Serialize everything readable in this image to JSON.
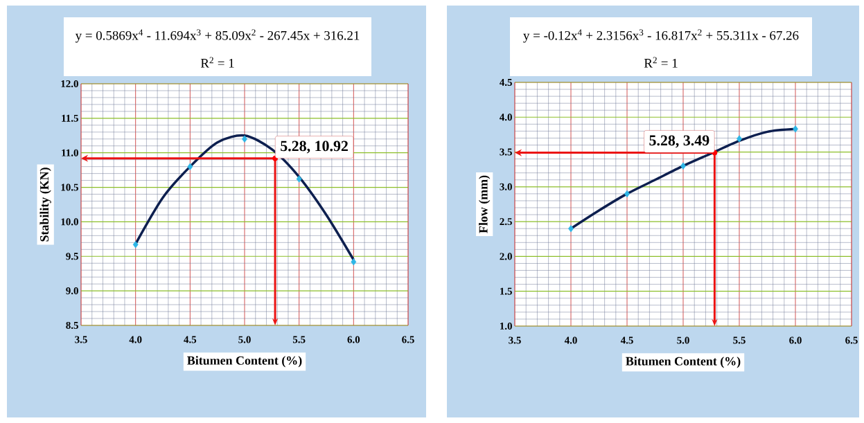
{
  "chart_data": [
    {
      "type": "scatter",
      "xlabel": "Bitumen Content (%)",
      "ylabel": "Stability (KN)",
      "xlim": [
        3.5,
        6.5
      ],
      "xticks": [
        3.5,
        {
          "value": 4,
          "label": "4.0"
        },
        4.5,
        {
          "value": 5,
          "label": "5.0"
        },
        5.5,
        {
          "value": 6,
          "label": "6.0"
        },
        6.5
      ],
      "ylim": [
        8.5,
        12
      ],
      "yticks": [
        8.5,
        {
          "value": 9,
          "label": "9.0"
        },
        9.5,
        {
          "value": 10,
          "label": "10.0"
        },
        10.5,
        {
          "value": 11,
          "label": "11.0"
        },
        11.5,
        {
          "value": 12,
          "label": "12.0"
        }
      ],
      "grid": true,
      "marker": "diamond",
      "series": [
        {
          "color": "#2eb6e6",
          "x": [
            4.0,
            4.5,
            5.0,
            5.5,
            6.0
          ],
          "values": [
            9.67,
            10.8,
            11.2,
            10.62,
            9.42
          ]
        },
        {
          "type": "line",
          "marker": "none",
          "color": "#0d1f4f",
          "x": [
            4.0,
            4.25,
            4.5,
            4.75,
            5.0,
            5.25,
            5.5,
            5.75,
            6.0
          ],
          "values": [
            9.68,
            10.35,
            10.8,
            11.15,
            11.25,
            11.05,
            10.65,
            10.1,
            9.45
          ]
        }
      ],
      "annotations": [
        "y = 0.5869x$^{4}$ - 11.694x$^{3}$ + 85.09x$^{2}$ - 267.45x + 316.21",
        "R$^{2}$ = 1",
        {
          "text": "5.28, 10.92",
          "x": 5.28,
          "y": 10.92
        }
      ]
    },
    {
      "type": "scatter",
      "xlabel": "Bitumen Content (%)",
      "ylabel": "Flow (mm)",
      "xlim": [
        3.5,
        6.5
      ],
      "xticks": [
        3.5,
        {
          "value": 4,
          "label": "4.0"
        },
        4.5,
        {
          "value": 5,
          "label": "5.0"
        },
        5.5,
        {
          "value": 6,
          "label": "6.0"
        },
        6.5
      ],
      "ylim": [
        1,
        4.5
      ],
      "yticks": [
        {
          "value": 1,
          "label": "1.0"
        },
        1.5,
        {
          "value": 2,
          "label": "2.0"
        },
        2.5,
        {
          "value": 3,
          "label": "3.0"
        },
        3.5,
        {
          "value": 4,
          "label": "4.0"
        },
        4.5
      ],
      "grid": true,
      "marker": "diamond",
      "series": [
        {
          "color": "#2eb6e6",
          "x": [
            4.0,
            4.5,
            5.0,
            5.5,
            6.0
          ],
          "values": [
            2.4,
            2.9,
            3.3,
            3.69,
            3.83
          ]
        },
        {
          "type": "line",
          "marker": "none",
          "color": "#0d1f4f",
          "x": [
            4.0,
            4.25,
            4.5,
            4.75,
            5.0,
            5.25,
            5.5,
            5.75,
            6.0
          ],
          "values": [
            2.4,
            2.66,
            2.9,
            3.1,
            3.3,
            3.48,
            3.66,
            3.79,
            3.83
          ]
        }
      ],
      "annotations": [
        "y = -0.12x$^{4}$ + 2.3156x$^{3}$ - 16.817x$^{2}$ + 55.311x - 67.26",
        "R$^{2}$ = 1",
        {
          "text": "5.28, 3.49",
          "x": 5.28,
          "y": 3.49
        }
      ]
    }
  ]
}
